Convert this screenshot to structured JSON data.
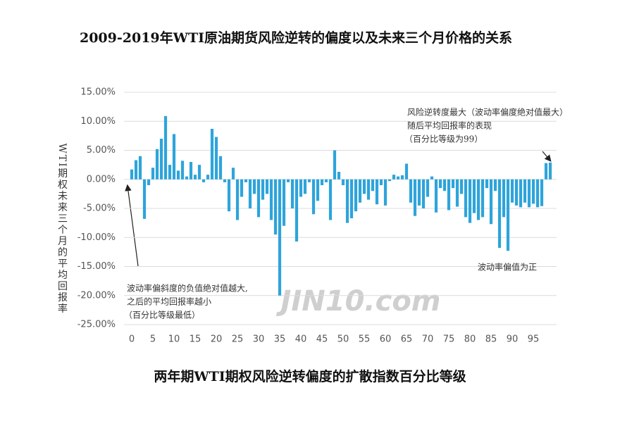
{
  "chart_data": {
    "type": "bar",
    "title": "2009-2019年WTI原油期货风险逆转的偏度以及未来三个月价格的关系",
    "xlabel": "两年期WTI期权风险逆转偏度的扩散指数百分比等级",
    "ylabel": "WTI期权未来三个月的平均回报率",
    "annotations": [
      {
        "lines": [
          "风险逆转度最大（波动率偏度绝对值最大）",
          "随后平均回报率的表现",
          "（百分比等级为99）"
        ]
      },
      {
        "lines": [
          "波动率偏斜度的负值绝对值越大,",
          "之后的平均回报率越小",
          "（百分比等级最低）"
        ]
      },
      {
        "lines": [
          "波动率偏值为正"
        ]
      }
    ],
    "watermark": "JIN10.com",
    "color": "#2ea4da",
    "x": [
      0,
      1,
      2,
      3,
      4,
      5,
      6,
      7,
      8,
      9,
      10,
      11,
      12,
      13,
      14,
      15,
      16,
      17,
      18,
      19,
      20,
      21,
      22,
      23,
      24,
      25,
      26,
      27,
      28,
      29,
      30,
      31,
      32,
      33,
      34,
      35,
      36,
      37,
      38,
      39,
      40,
      41,
      42,
      43,
      44,
      45,
      46,
      47,
      48,
      49,
      50,
      51,
      52,
      53,
      54,
      55,
      56,
      57,
      58,
      59,
      60,
      61,
      62,
      63,
      64,
      65,
      66,
      67,
      68,
      69,
      70,
      71,
      72,
      73,
      74,
      75,
      76,
      77,
      78,
      79,
      80,
      81,
      82,
      83,
      84,
      85,
      86,
      87,
      88,
      89,
      90,
      91,
      92,
      93,
      94,
      95,
      96,
      97,
      98,
      99
    ],
    "values": [
      1.7,
      3.3,
      4.0,
      -6.8,
      -1.0,
      2.0,
      5.2,
      7.0,
      10.9,
      2.5,
      7.8,
      1.5,
      3.2,
      0.5,
      3.0,
      0.8,
      2.5,
      -0.5,
      0.8,
      8.7,
      7.3,
      4.0,
      -0.5,
      -5.5,
      2.0,
      -7.0,
      -3.0,
      -0.5,
      -5.0,
      -2.5,
      -6.5,
      -3.5,
      -2.5,
      -7.0,
      -9.5,
      -20.0,
      -8.0,
      -0.5,
      -5.0,
      -10.7,
      -3.0,
      -2.5,
      -0.5,
      -6.0,
      -3.7,
      -1.0,
      -0.5,
      -7.0,
      5.0,
      1.3,
      -1.0,
      -7.5,
      -6.7,
      -5.5,
      -4.0,
      -2.5,
      -3.5,
      -2.0,
      -4.3,
      -1.0,
      -4.5,
      -0.3,
      0.8,
      0.5,
      0.7,
      2.7,
      -4.0,
      -6.3,
      -4.5,
      -5.0,
      -3.0,
      0.5,
      -5.7,
      -1.5,
      -2.0,
      -5.3,
      -1.5,
      -4.7,
      -2.5,
      -6.5,
      -7.5,
      -5.8,
      -7.0,
      -6.5,
      -1.5,
      -7.7,
      -2.0,
      -11.8,
      -6.5,
      -12.3,
      -4.0,
      -4.5,
      -4.8,
      -4.0,
      -4.8,
      -4.2,
      -4.8,
      -4.6,
      2.8,
      2.9
    ],
    "xlim": [
      -1,
      100
    ],
    "xticks": [
      0,
      5,
      10,
      15,
      20,
      25,
      30,
      35,
      40,
      45,
      50,
      55,
      60,
      65,
      70,
      75,
      80,
      85,
      90,
      95
    ],
    "ylim": [
      -25,
      15
    ],
    "yticks": [
      {
        "value": 15,
        "label": "15.00%"
      },
      {
        "value": 10,
        "label": "10.00%"
      },
      {
        "value": 5,
        "label": "5.00%"
      },
      {
        "value": 0,
        "label": "0.00%"
      },
      {
        "value": -5,
        "label": "-5.00%"
      },
      {
        "value": -10,
        "label": "-10.00%"
      },
      {
        "value": -15,
        "label": "-15.00%"
      },
      {
        "value": -20,
        "label": "-20.00%"
      },
      {
        "value": -25,
        "label": "-25.00%"
      }
    ],
    "grid": true
  }
}
